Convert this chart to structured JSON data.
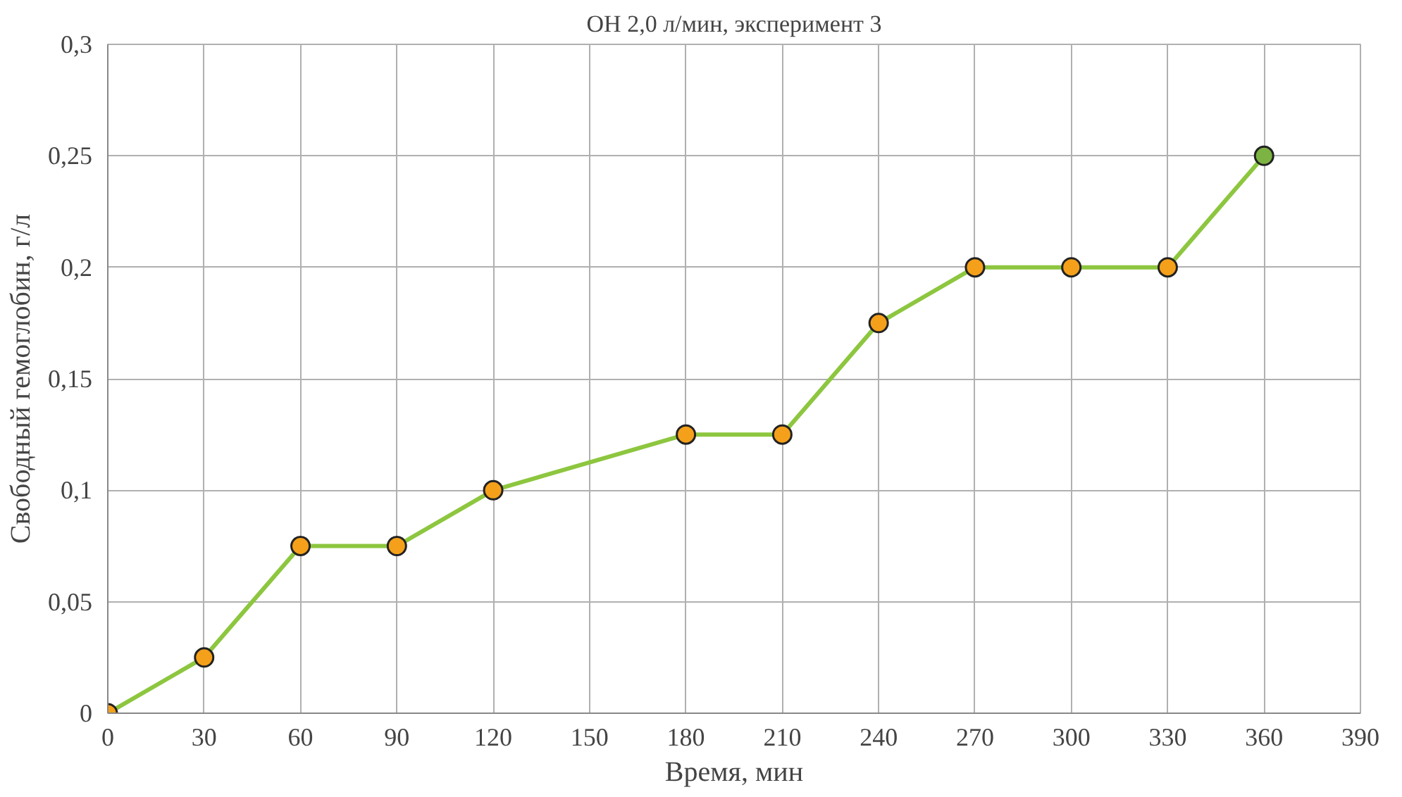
{
  "chart_data": {
    "type": "line",
    "title": "ОН 2,0 л/мин, эксперимент 3",
    "xlabel": "Время, мин",
    "ylabel": "Свободный гемоглобин, г/л",
    "x": [
      0,
      30,
      60,
      90,
      120,
      180,
      210,
      240,
      270,
      300,
      330,
      360
    ],
    "series": [
      {
        "color": "#8dc63f",
        "colors": [
          "#f5a01a",
          "#f5a01a",
          "#f5a01a",
          "#f5a01a",
          "#f5a01a",
          "#f5a01a",
          "#f5a01a",
          "#f5a01a",
          "#f5a01a",
          "#f5a01a",
          "#f5a01a",
          "#7cb342"
        ],
        "values": [
          0,
          0.025,
          0.075,
          0.075,
          0.1,
          0.125,
          0.125,
          0.175,
          0.2,
          0.2,
          0.2,
          0.25
        ]
      }
    ],
    "xlim": [
      0,
      390
    ],
    "xticks": [
      0,
      30,
      60,
      90,
      120,
      150,
      180,
      210,
      240,
      270,
      300,
      330,
      360,
      390
    ],
    "ylim": [
      0,
      0.3
    ],
    "yticks": [
      0,
      {
        "value": 0.05,
        "label": "0,05"
      },
      {
        "value": 0.1,
        "label": "0,1"
      },
      {
        "value": 0.15,
        "label": "0,15"
      },
      {
        "value": 0.2,
        "label": "0,2"
      },
      {
        "value": 0.25,
        "label": "0,25"
      },
      {
        "value": 0.3,
        "label": "0,3"
      }
    ],
    "grid": true,
    "marker": "circle",
    "line_style": "solid"
  }
}
